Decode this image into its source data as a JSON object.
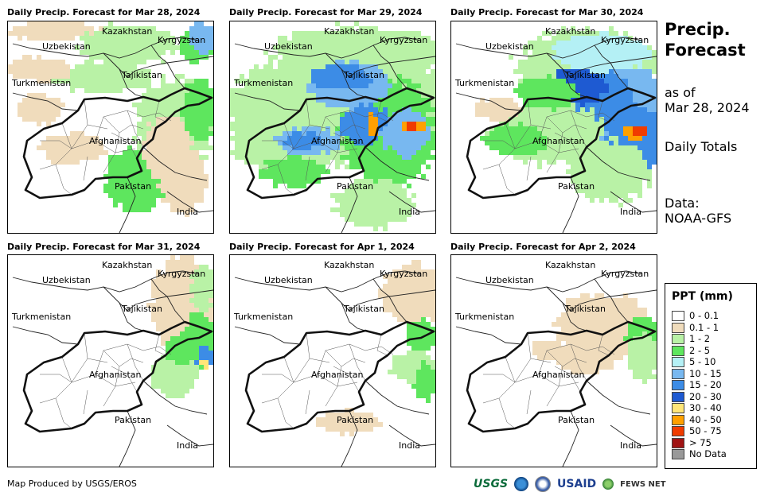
{
  "panels": [
    {
      "title": "Daily Precip. Forecast for Mar 28, 2024"
    },
    {
      "title": "Daily Precip. Forecast for Mar 29, 2024"
    },
    {
      "title": "Daily Precip. Forecast for Mar 30, 2024"
    },
    {
      "title": "Daily Precip. Forecast for Mar 31, 2024"
    },
    {
      "title": "Daily Precip. Forecast for Apr 1, 2024"
    },
    {
      "title": "Daily Precip. Forecast for Apr 2, 2024"
    }
  ],
  "map_labels": {
    "kazakhstan": "Kazakhstan",
    "kyrgyzstan": "Kyrgyzstan",
    "uzbekistan": "Uzbekistan",
    "tajikistan": "Tajikistan",
    "turkmenistan": "Turkmenistan",
    "afghanistan": "Afghanistan",
    "pakistan": "Pakistan",
    "india": "India"
  },
  "sidebar": {
    "title_line1": "Precip.",
    "title_line2": "Forecast",
    "asof_line1": "as of",
    "asof_line2": "Mar 28, 2024",
    "daily": "Daily Totals",
    "data_line1": "Data:",
    "data_line2": "NOAA-GFS"
  },
  "legend": {
    "title": "PPT (mm)",
    "items": [
      {
        "label": "0 - 0.1",
        "color": "#ffffff"
      },
      {
        "label": "0.1 - 1",
        "color": "#f0dcbc"
      },
      {
        "label": "1 - 2",
        "color": "#b9f2a6"
      },
      {
        "label": "2 - 5",
        "color": "#5ee65e"
      },
      {
        "label": "5 - 10",
        "color": "#b4f0f5"
      },
      {
        "label": "10 - 15",
        "color": "#78b8f0"
      },
      {
        "label": "15 - 20",
        "color": "#3c8ce6"
      },
      {
        "label": "20 - 30",
        "color": "#1e5ad2"
      },
      {
        "label": "30 - 40",
        "color": "#ffe678"
      },
      {
        "label": "40 - 50",
        "color": "#ffa000"
      },
      {
        "label": "50 - 75",
        "color": "#f03c00"
      },
      {
        "label": "> 75",
        "color": "#a01414"
      },
      {
        "label": "No Data",
        "color": "#999999"
      }
    ]
  },
  "footer": {
    "credit": "Map Produced by USGS/EROS",
    "logos": {
      "usgs": "USGS",
      "usaid": "USAID",
      "fews": "FEWS NET"
    }
  }
}
